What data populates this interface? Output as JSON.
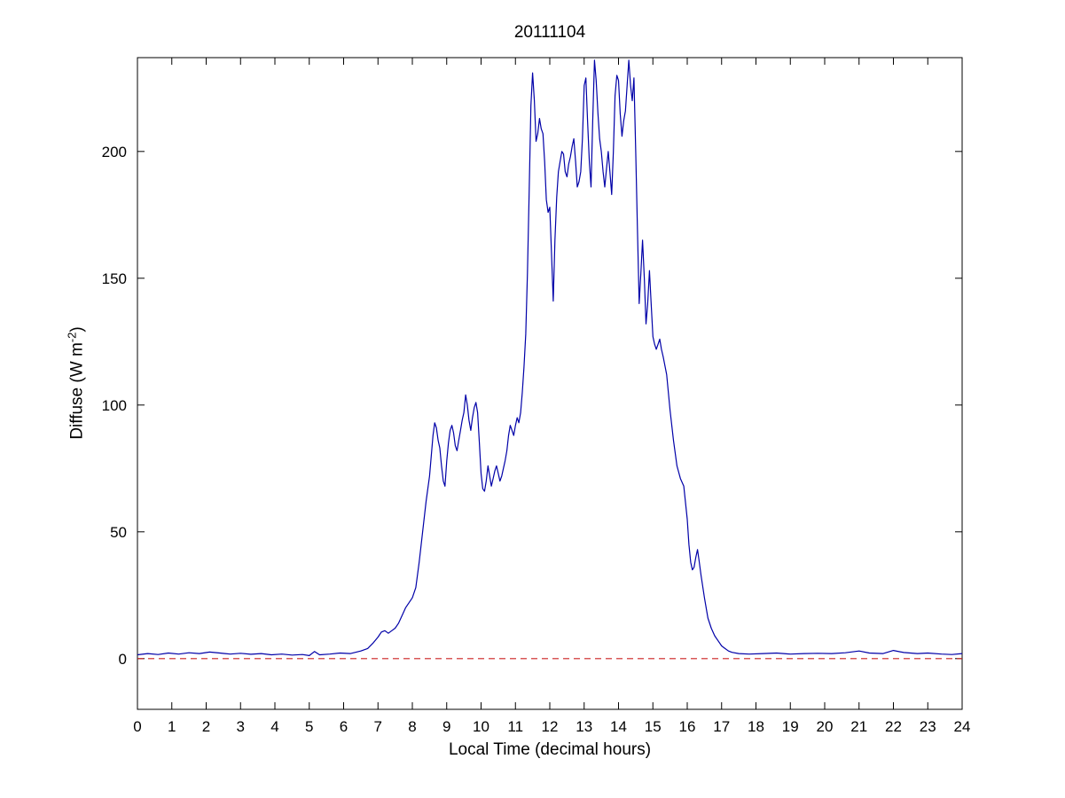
{
  "figure": {
    "background": "#ffffff",
    "axis_color": "#000000"
  },
  "chart_data": {
    "type": "line",
    "title": "20111104",
    "xlabel": "Local Time (decimal hours)",
    "ylabel": "Diffuse (W m⁻²)",
    "ylabel_parts": {
      "prefix": "Diffuse (W m",
      "sup": "-2",
      "suffix": ")"
    },
    "xlim": [
      0,
      24
    ],
    "ylim": [
      -20,
      237
    ],
    "xticks": [
      0,
      1,
      2,
      3,
      4,
      5,
      6,
      7,
      8,
      9,
      10,
      11,
      12,
      13,
      14,
      15,
      16,
      17,
      18,
      19,
      20,
      21,
      22,
      23,
      24
    ],
    "yticks": [
      0,
      50,
      100,
      150,
      200
    ],
    "grid": false,
    "legend": null,
    "series": [
      {
        "name": "diffuse-irradiance",
        "color": "#0000A8",
        "style": "solid",
        "points": [
          [
            0,
            1.5
          ],
          [
            0.3,
            2.0
          ],
          [
            0.6,
            1.6
          ],
          [
            0.9,
            2.2
          ],
          [
            1.2,
            1.8
          ],
          [
            1.5,
            2.3
          ],
          [
            1.8,
            2.0
          ],
          [
            2.1,
            2.6
          ],
          [
            2.4,
            2.2
          ],
          [
            2.7,
            1.8
          ],
          [
            3.0,
            2.1
          ],
          [
            3.3,
            1.7
          ],
          [
            3.6,
            2.0
          ],
          [
            3.9,
            1.5
          ],
          [
            4.2,
            1.8
          ],
          [
            4.5,
            1.4
          ],
          [
            4.8,
            1.6
          ],
          [
            5.0,
            1.2
          ],
          [
            5.15,
            2.8
          ],
          [
            5.3,
            1.5
          ],
          [
            5.6,
            1.8
          ],
          [
            5.9,
            2.2
          ],
          [
            6.2,
            2.0
          ],
          [
            6.5,
            3.0
          ],
          [
            6.7,
            4.0
          ],
          [
            6.85,
            6.0
          ],
          [
            7.0,
            8.5
          ],
          [
            7.1,
            10.5
          ],
          [
            7.2,
            11.0
          ],
          [
            7.3,
            10.0
          ],
          [
            7.4,
            11.0
          ],
          [
            7.5,
            12.0
          ],
          [
            7.6,
            14.0
          ],
          [
            7.7,
            17.0
          ],
          [
            7.8,
            20.0
          ],
          [
            7.9,
            22.0
          ],
          [
            8.0,
            24.0
          ],
          [
            8.1,
            28.0
          ],
          [
            8.2,
            38.0
          ],
          [
            8.3,
            50.0
          ],
          [
            8.4,
            62.0
          ],
          [
            8.5,
            72.0
          ],
          [
            8.6,
            88.0
          ],
          [
            8.65,
            93.0
          ],
          [
            8.7,
            91.0
          ],
          [
            8.75,
            86.0
          ],
          [
            8.8,
            83.0
          ],
          [
            8.85,
            76.0
          ],
          [
            8.9,
            70.0
          ],
          [
            8.95,
            68.0
          ],
          [
            9.0,
            78.0
          ],
          [
            9.05,
            85.0
          ],
          [
            9.1,
            90.0
          ],
          [
            9.15,
            92.0
          ],
          [
            9.2,
            89.0
          ],
          [
            9.25,
            84.0
          ],
          [
            9.3,
            82.0
          ],
          [
            9.35,
            86.0
          ],
          [
            9.4,
            90.0
          ],
          [
            9.45,
            94.0
          ],
          [
            9.5,
            97.0
          ],
          [
            9.55,
            104.0
          ],
          [
            9.6,
            100.0
          ],
          [
            9.65,
            94.0
          ],
          [
            9.7,
            90.0
          ],
          [
            9.75,
            95.0
          ],
          [
            9.8,
            99.0
          ],
          [
            9.85,
            101.0
          ],
          [
            9.9,
            97.0
          ],
          [
            9.95,
            85.0
          ],
          [
            10.0,
            73.0
          ],
          [
            10.05,
            67.0
          ],
          [
            10.1,
            66.0
          ],
          [
            10.15,
            70.0
          ],
          [
            10.2,
            76.0
          ],
          [
            10.25,
            72.0
          ],
          [
            10.3,
            68.0
          ],
          [
            10.35,
            71.0
          ],
          [
            10.4,
            74.0
          ],
          [
            10.45,
            76.0
          ],
          [
            10.5,
            73.0
          ],
          [
            10.55,
            70.0
          ],
          [
            10.6,
            72.0
          ],
          [
            10.65,
            75.0
          ],
          [
            10.7,
            78.0
          ],
          [
            10.75,
            82.0
          ],
          [
            10.8,
            88.0
          ],
          [
            10.85,
            92.0
          ],
          [
            10.9,
            90.0
          ],
          [
            10.95,
            88.0
          ],
          [
            11.0,
            92.0
          ],
          [
            11.05,
            95.0
          ],
          [
            11.1,
            93.0
          ],
          [
            11.15,
            97.0
          ],
          [
            11.2,
            105.0
          ],
          [
            11.25,
            115.0
          ],
          [
            11.3,
            128.0
          ],
          [
            11.35,
            152.0
          ],
          [
            11.4,
            185.0
          ],
          [
            11.45,
            218.0
          ],
          [
            11.5,
            231.0
          ],
          [
            11.55,
            220.0
          ],
          [
            11.6,
            204.0
          ],
          [
            11.65,
            207.0
          ],
          [
            11.7,
            213.0
          ],
          [
            11.75,
            209.0
          ],
          [
            11.8,
            207.0
          ],
          [
            11.85,
            196.0
          ],
          [
            11.9,
            181.0
          ],
          [
            11.95,
            176.0
          ],
          [
            12.0,
            178.0
          ],
          [
            12.05,
            160.0
          ],
          [
            12.1,
            141.0
          ],
          [
            12.15,
            165.0
          ],
          [
            12.2,
            182.0
          ],
          [
            12.25,
            192.0
          ],
          [
            12.3,
            196.0
          ],
          [
            12.35,
            200.0
          ],
          [
            12.4,
            199.0
          ],
          [
            12.45,
            192.0
          ],
          [
            12.5,
            190.0
          ],
          [
            12.55,
            195.0
          ],
          [
            12.6,
            198.0
          ],
          [
            12.65,
            202.0
          ],
          [
            12.7,
            205.0
          ],
          [
            12.75,
            196.0
          ],
          [
            12.8,
            186.0
          ],
          [
            12.85,
            188.0
          ],
          [
            12.9,
            192.0
          ],
          [
            12.95,
            205.0
          ],
          [
            13.0,
            226.0
          ],
          [
            13.05,
            229.0
          ],
          [
            13.1,
            212.0
          ],
          [
            13.15,
            196.0
          ],
          [
            13.2,
            186.0
          ],
          [
            13.25,
            212.0
          ],
          [
            13.3,
            236.0
          ],
          [
            13.35,
            228.0
          ],
          [
            13.4,
            215.0
          ],
          [
            13.45,
            205.0
          ],
          [
            13.5,
            200.0
          ],
          [
            13.55,
            192.0
          ],
          [
            13.6,
            186.0
          ],
          [
            13.65,
            193.0
          ],
          [
            13.7,
            200.0
          ],
          [
            13.75,
            192.0
          ],
          [
            13.8,
            183.0
          ],
          [
            13.85,
            200.0
          ],
          [
            13.9,
            222.0
          ],
          [
            13.95,
            230.0
          ],
          [
            14.0,
            228.0
          ],
          [
            14.05,
            215.0
          ],
          [
            14.1,
            206.0
          ],
          [
            14.15,
            212.0
          ],
          [
            14.2,
            216.0
          ],
          [
            14.25,
            226.0
          ],
          [
            14.3,
            236.0
          ],
          [
            14.35,
            226.0
          ],
          [
            14.4,
            220.0
          ],
          [
            14.45,
            229.0
          ],
          [
            14.5,
            200.0
          ],
          [
            14.55,
            170.0
          ],
          [
            14.6,
            140.0
          ],
          [
            14.65,
            152.0
          ],
          [
            14.7,
            165.0
          ],
          [
            14.75,
            150.0
          ],
          [
            14.8,
            132.0
          ],
          [
            14.85,
            140.0
          ],
          [
            14.9,
            153.0
          ],
          [
            14.95,
            140.0
          ],
          [
            15.0,
            127.0
          ],
          [
            15.05,
            124.0
          ],
          [
            15.1,
            122.0
          ],
          [
            15.15,
            124.0
          ],
          [
            15.2,
            126.0
          ],
          [
            15.25,
            122.0
          ],
          [
            15.3,
            119.0
          ],
          [
            15.4,
            112.0
          ],
          [
            15.5,
            98.0
          ],
          [
            15.6,
            86.0
          ],
          [
            15.7,
            76.0
          ],
          [
            15.8,
            71.0
          ],
          [
            15.9,
            68.0
          ],
          [
            16.0,
            55.0
          ],
          [
            16.05,
            45.0
          ],
          [
            16.1,
            38.0
          ],
          [
            16.15,
            35.0
          ],
          [
            16.2,
            36.0
          ],
          [
            16.25,
            40.0
          ],
          [
            16.3,
            43.0
          ],
          [
            16.35,
            38.0
          ],
          [
            16.4,
            33.0
          ],
          [
            16.5,
            24.0
          ],
          [
            16.6,
            16.0
          ],
          [
            16.7,
            12.0
          ],
          [
            16.8,
            9.0
          ],
          [
            16.9,
            7.0
          ],
          [
            17.0,
            5.0
          ],
          [
            17.1,
            4.0
          ],
          [
            17.2,
            3.0
          ],
          [
            17.3,
            2.5
          ],
          [
            17.5,
            2.0
          ],
          [
            17.8,
            1.8
          ],
          [
            18.2,
            2.0
          ],
          [
            18.6,
            2.2
          ],
          [
            19.0,
            1.8
          ],
          [
            19.4,
            2.0
          ],
          [
            19.8,
            2.1
          ],
          [
            20.2,
            2.0
          ],
          [
            20.6,
            2.3
          ],
          [
            21.0,
            3.0
          ],
          [
            21.3,
            2.2
          ],
          [
            21.7,
            2.0
          ],
          [
            22.0,
            3.2
          ],
          [
            22.3,
            2.4
          ],
          [
            22.7,
            2.0
          ],
          [
            23.0,
            2.2
          ],
          [
            23.4,
            1.8
          ],
          [
            23.7,
            1.6
          ],
          [
            24.0,
            2.0
          ]
        ]
      },
      {
        "name": "zero-reference-line",
        "color": "#CC2020",
        "style": "dashed",
        "points": [
          [
            0,
            0
          ],
          [
            24,
            0
          ]
        ]
      }
    ]
  }
}
